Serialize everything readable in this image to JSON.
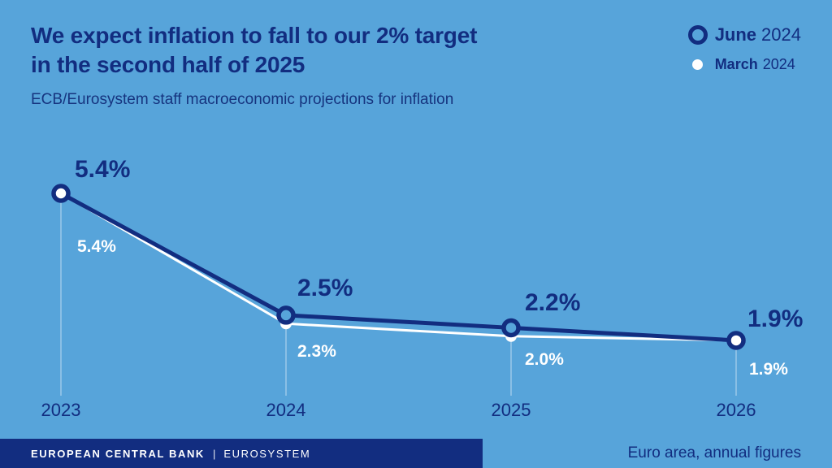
{
  "title": {
    "line1": "We expect inflation to fall to our 2% target",
    "line2": "in the second half of 2025"
  },
  "subtitle": "ECB/Eurosystem staff macroeconomic projections for inflation",
  "legend": {
    "items": [
      {
        "bold": "June",
        "rest": "2024",
        "marker": "open-ring"
      },
      {
        "bold": "March",
        "rest": "2024",
        "marker": "filled-dot"
      }
    ]
  },
  "colors": {
    "background": "#57a4da",
    "navy": "#122d80",
    "white": "#ffffff",
    "guide": "rgba(255,255,255,0.6)"
  },
  "chart_data": {
    "type": "line",
    "x": [
      "2023",
      "2024",
      "2025",
      "2026"
    ],
    "series": [
      {
        "name": "June 2024",
        "values": [
          5.4,
          2.5,
          2.2,
          1.9
        ],
        "labels": [
          "5.4%",
          "2.5%",
          "2.2%",
          "1.9%"
        ],
        "color": "#122d80",
        "marker": "open-circle"
      },
      {
        "name": "March 2024",
        "values": [
          5.4,
          2.3,
          2.0,
          1.9
        ],
        "labels": [
          "5.4%",
          "2.3%",
          "2.0%",
          "1.9%"
        ],
        "color": "#ffffff",
        "marker": "filled-circle"
      }
    ],
    "ylim": [
      1.5,
      5.8
    ],
    "grid": false,
    "legend_position": "top-right",
    "xlabel": "",
    "ylabel": ""
  },
  "footer": {
    "bank": "EUROPEAN CENTRAL BANK",
    "pipe": "|",
    "system": "EUROSYSTEM",
    "note": "Euro area, annual figures"
  }
}
